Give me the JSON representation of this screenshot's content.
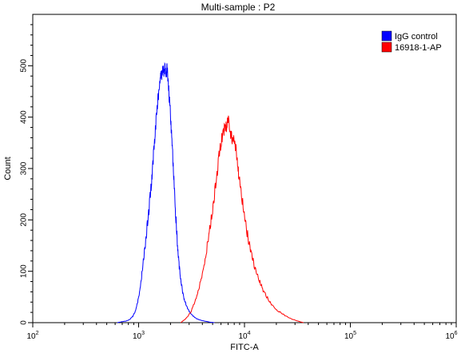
{
  "chart_data": {
    "type": "line",
    "title": "Multi-sample : P2",
    "xlabel": "FITC-A",
    "ylabel": "Count",
    "x_scale": "log",
    "xlim": [
      100,
      1000000
    ],
    "ylim": [
      0,
      600
    ],
    "x_ticks": [
      {
        "value": 100,
        "base": "10",
        "exp": "2"
      },
      {
        "value": 1000,
        "base": "10",
        "exp": "3"
      },
      {
        "value": 10000,
        "base": "10",
        "exp": "4"
      },
      {
        "value": 100000,
        "base": "10",
        "exp": "5"
      },
      {
        "value": 1000000,
        "base": "10",
        "exp": "6"
      }
    ],
    "y_ticks": [
      0,
      100,
      200,
      300,
      400,
      500
    ],
    "legend_position": "top-right",
    "series": [
      {
        "name": "IgG control",
        "color": "#0000ff",
        "x": [
          630,
          700,
          760,
          820,
          880,
          930,
          980,
          1020,
          1060,
          1100,
          1150,
          1200,
          1250,
          1300,
          1340,
          1380,
          1420,
          1460,
          1500,
          1540,
          1580,
          1620,
          1660,
          1700,
          1740,
          1780,
          1820,
          1860,
          1900,
          1940,
          1980,
          2030,
          2080,
          2130,
          2180,
          2230,
          2290,
          2350,
          2420,
          2500,
          2600,
          2700,
          2800,
          2950,
          3100,
          3300,
          3500,
          3800,
          4200,
          4700,
          5200
        ],
        "y": [
          0,
          2,
          3,
          6,
          12,
          22,
          40,
          60,
          85,
          115,
          150,
          185,
          220,
          255,
          290,
          325,
          360,
          390,
          420,
          445,
          465,
          478,
          485,
          492,
          488,
          495,
          480,
          498,
          470,
          440,
          420,
          380,
          340,
          300,
          255,
          215,
          175,
          140,
          110,
          85,
          60,
          45,
          35,
          25,
          18,
          12,
          8,
          5,
          3,
          1,
          0
        ]
      },
      {
        "name": "16918-1-AP",
        "color": "#ff0000",
        "x": [
          2500,
          2800,
          3100,
          3400,
          3700,
          4000,
          4300,
          4600,
          4900,
          5200,
          5500,
          5800,
          6100,
          6400,
          6700,
          7000,
          7300,
          7600,
          7900,
          8200,
          8500,
          8800,
          9200,
          9700,
          10200,
          10800,
          11500,
          12200,
          13000,
          14000,
          15000,
          16500,
          18000,
          20000,
          22500,
          25000,
          28000,
          32000,
          36000
        ],
        "y": [
          0,
          8,
          20,
          40,
          65,
          95,
          130,
          170,
          210,
          250,
          290,
          330,
          360,
          375,
          380,
          395,
          370,
          360,
          355,
          345,
          320,
          290,
          260,
          225,
          195,
          165,
          140,
          115,
          95,
          80,
          62,
          48,
          35,
          25,
          18,
          12,
          7,
          3,
          0
        ]
      }
    ]
  }
}
